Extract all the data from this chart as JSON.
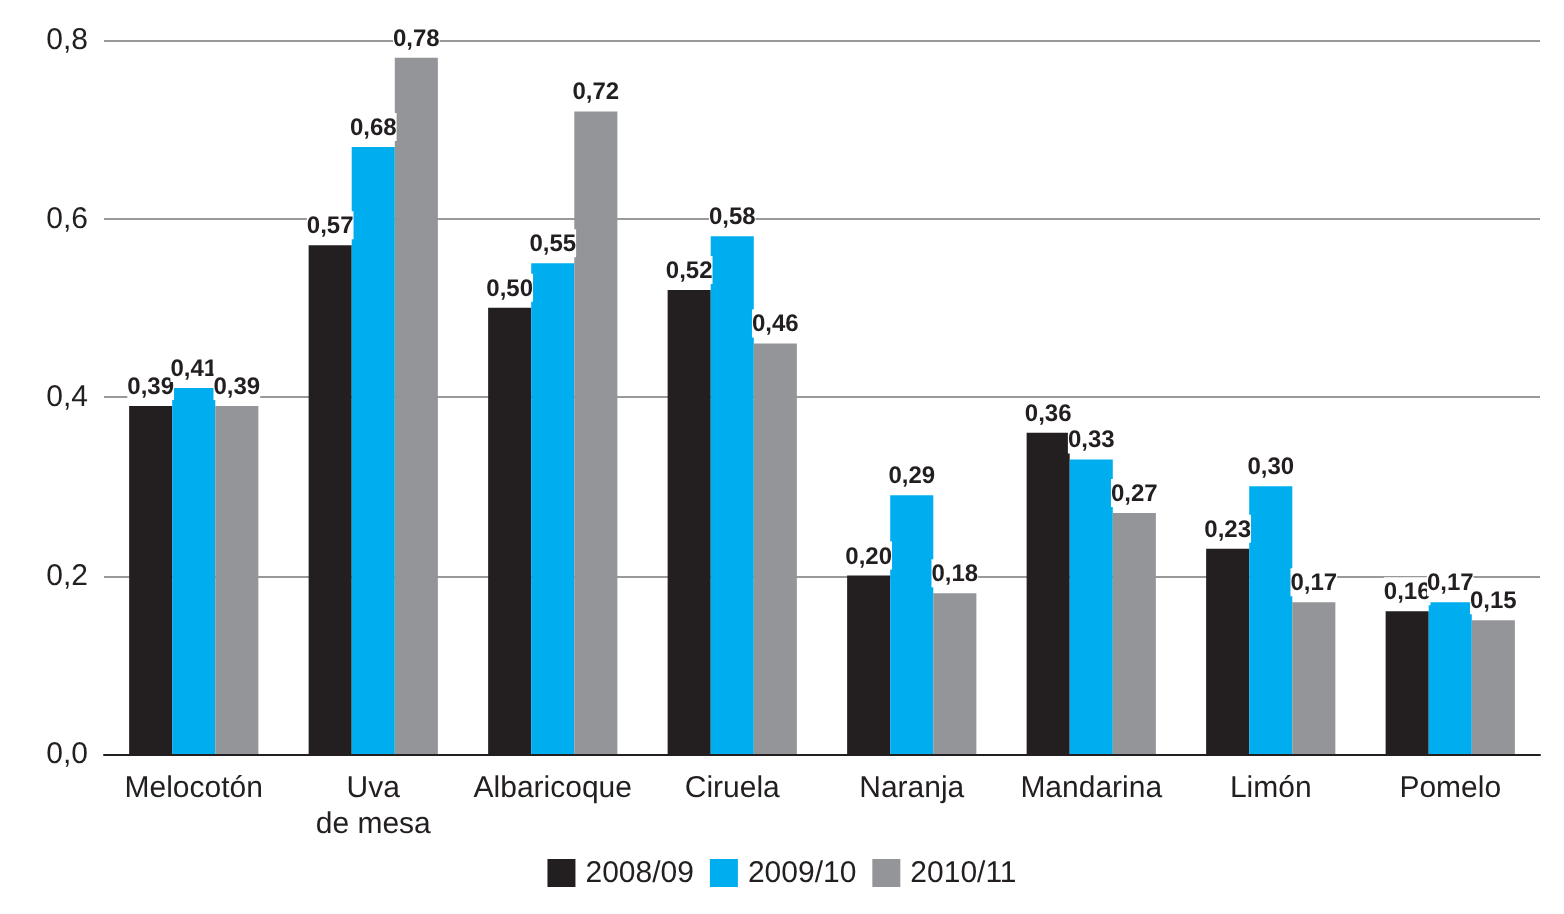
{
  "chart_data": {
    "type": "bar",
    "categories": [
      "Melocotón",
      "Uva\nde mesa",
      "Albaricoque",
      "Ciruela",
      "Naranja",
      "Mandarina",
      "Limón",
      "Pomelo"
    ],
    "series": [
      {
        "name": "2008/09",
        "color": "#231f20",
        "values": [
          0.39,
          0.57,
          0.5,
          0.52,
          0.2,
          0.36,
          0.23,
          0.16
        ],
        "value_labels": [
          "0,39",
          "0,57",
          "0,50",
          "0,52",
          "0,20",
          "0,36",
          "0,23",
          "0,16"
        ]
      },
      {
        "name": "2009/10",
        "color": "#00aeef",
        "values": [
          0.41,
          0.68,
          0.55,
          0.58,
          0.29,
          0.33,
          0.3,
          0.17
        ],
        "value_labels": [
          "0,41",
          "0,68",
          "0,55",
          "0,58",
          "0,29",
          "0,33",
          "0,30",
          "0,17"
        ]
      },
      {
        "name": "2010/11",
        "color": "#939598",
        "values": [
          0.39,
          0.78,
          0.72,
          0.46,
          0.18,
          0.27,
          0.17,
          0.15
        ],
        "value_labels": [
          "0,39",
          "0,78",
          "0,72",
          "0,46",
          "0,18",
          "0,27",
          "0,17",
          "0,15"
        ]
      }
    ],
    "ylim": [
      0,
      0.8
    ],
    "yticks": [
      {
        "value": 0,
        "label": "0,0"
      },
      {
        "value": 0.2,
        "label": "0,2"
      },
      {
        "value": 0.4,
        "label": "0,4"
      },
      {
        "value": 0.6,
        "label": "0,6"
      },
      {
        "value": 0.8,
        "label": "0,8"
      }
    ],
    "grid": "y",
    "legend": "bottom"
  }
}
